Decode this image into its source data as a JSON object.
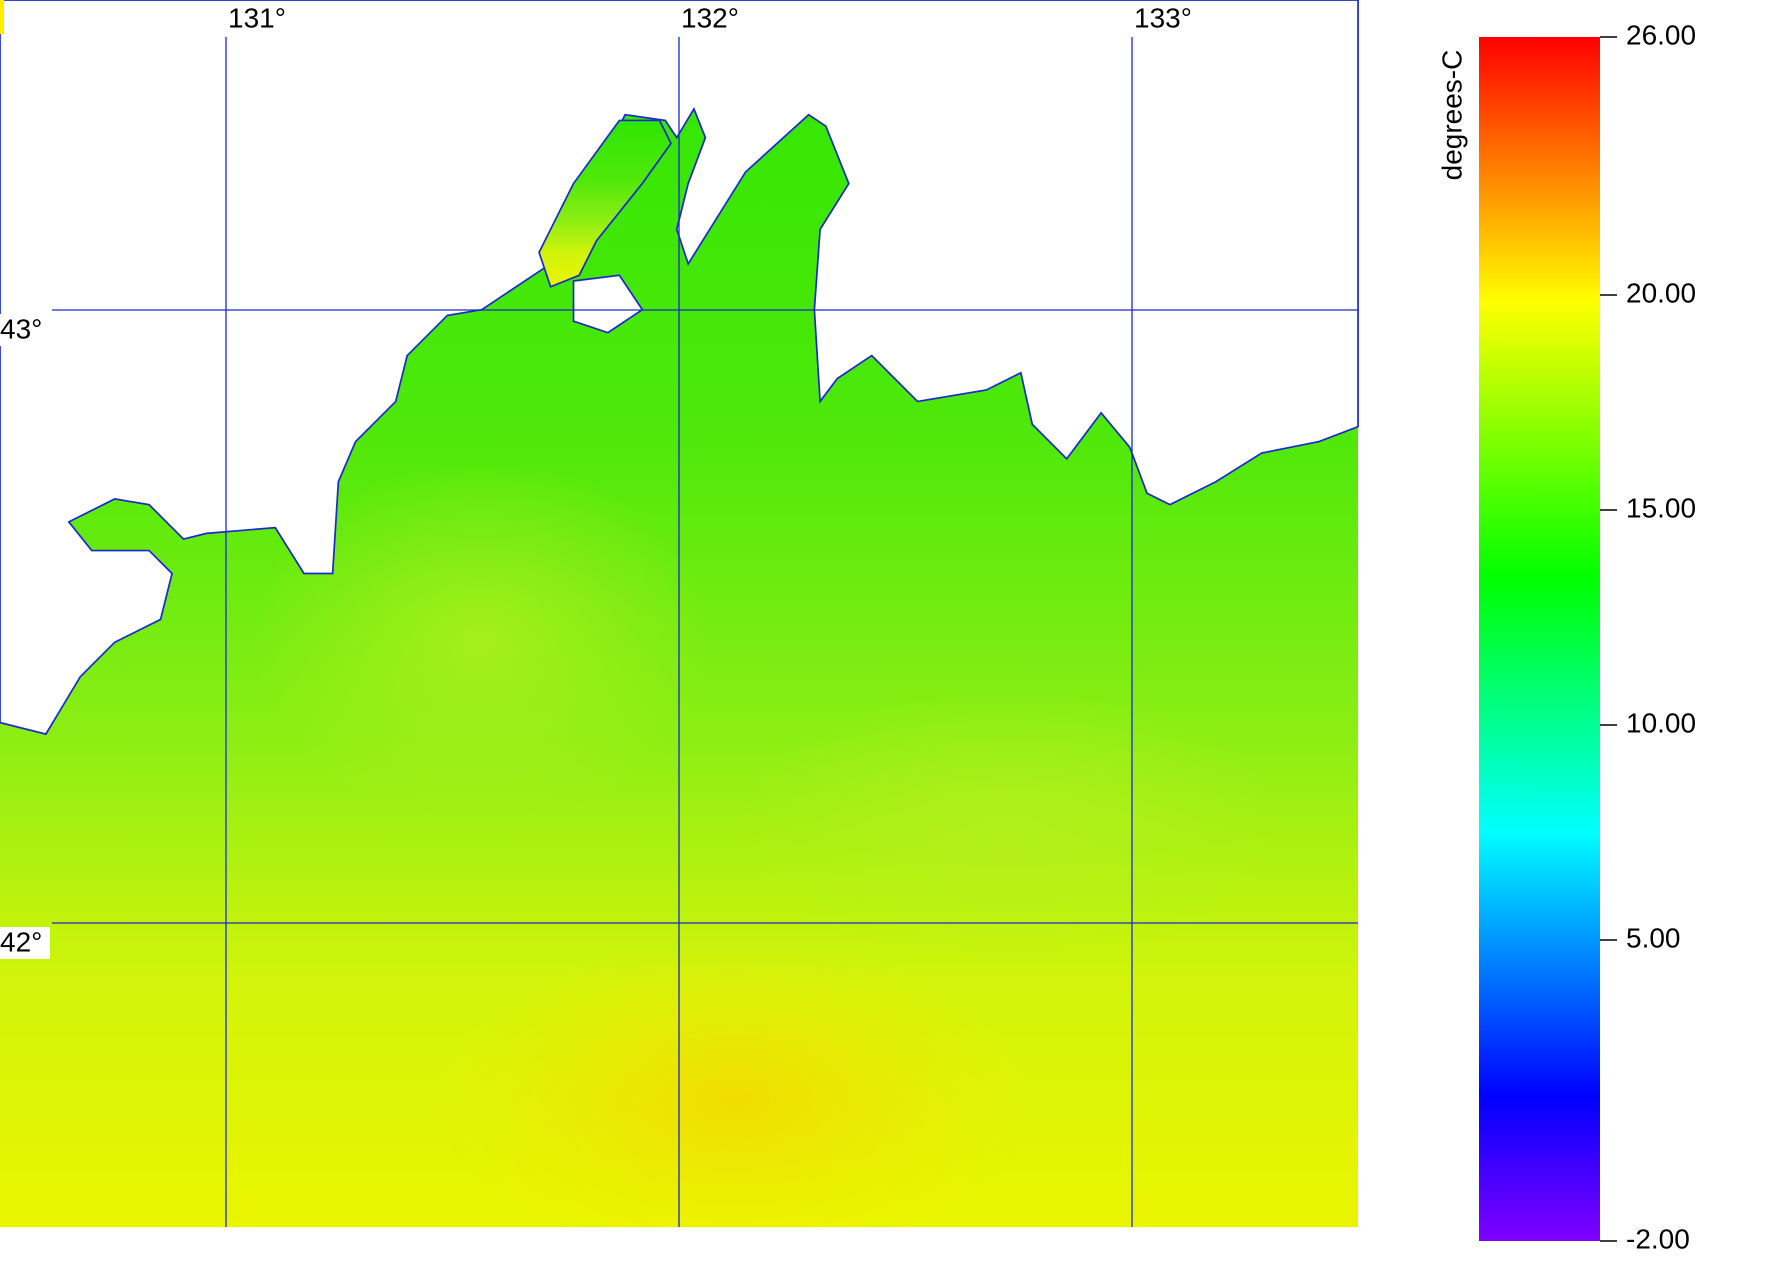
{
  "map": {
    "lon_ticks": [
      {
        "value": 131,
        "label": "131°"
      },
      {
        "value": 132,
        "label": "132°"
      },
      {
        "value": 133,
        "label": "133°"
      }
    ],
    "lat_ticks": [
      {
        "value": 43,
        "label": "43°"
      },
      {
        "value": 42,
        "label": "42°"
      }
    ],
    "colorbar": {
      "label": "degrees-C",
      "range": [
        -2,
        26
      ],
      "ticks": [
        {
          "value": 26,
          "label": "26.00"
        },
        {
          "value": 20,
          "label": "20.00"
        },
        {
          "value": 15,
          "label": "15.00"
        },
        {
          "value": 10,
          "label": "10.00"
        },
        {
          "value": 5,
          "label": "5.00"
        },
        {
          "value": -2,
          "label": "-2.00"
        }
      ]
    }
  }
}
